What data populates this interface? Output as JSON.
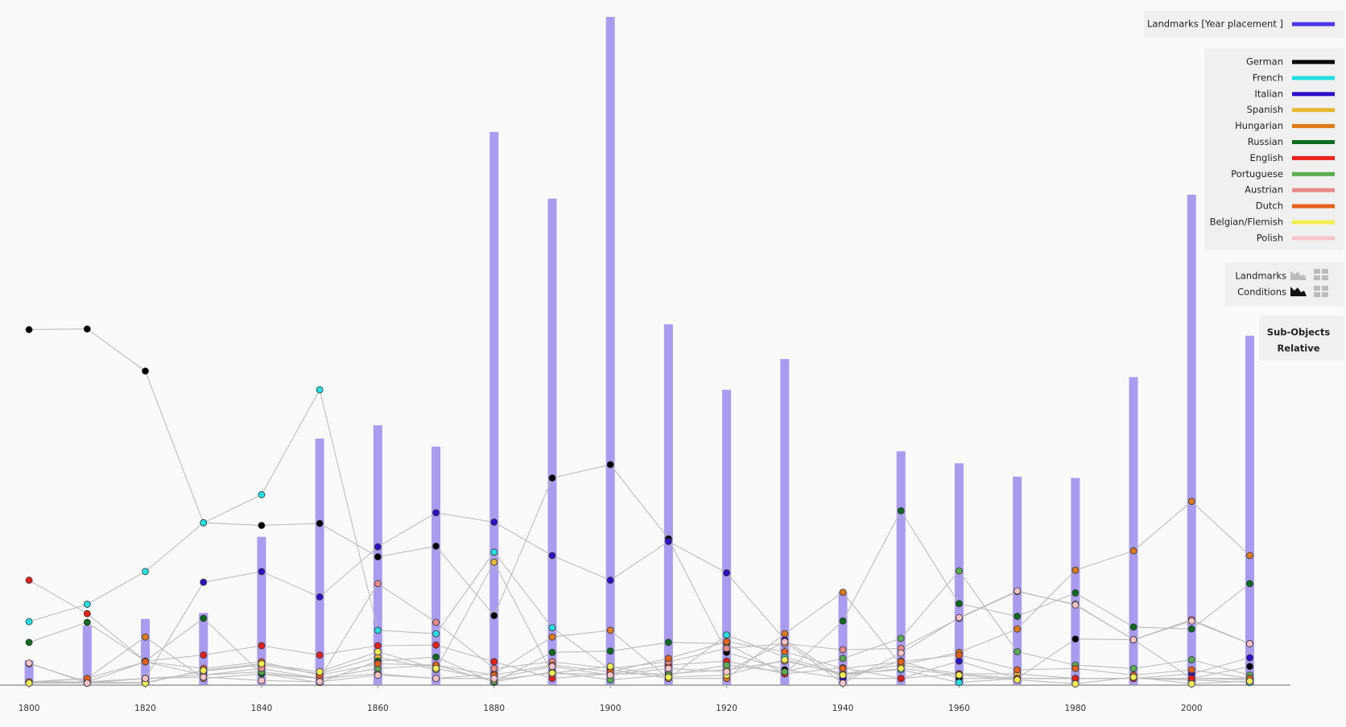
{
  "chart_data": {
    "type": "bar",
    "x": [
      1800,
      1810,
      1820,
      1830,
      1840,
      1850,
      1860,
      1870,
      1880,
      1890,
      1900,
      1910,
      1920,
      1930,
      1940,
      1950,
      1960,
      1970,
      1980,
      1990,
      2000,
      2010
    ],
    "xlim": [
      1795,
      2017
    ],
    "xticks": [
      1800,
      1820,
      1840,
      1860,
      1880,
      1900,
      1920,
      1940,
      1960,
      1980,
      2000
    ],
    "ylim": [
      0,
      100
    ],
    "series": [
      {
        "name": "Landmarks [Year placement ]",
        "type": "bar",
        "color": "#a99cf0",
        "legend_color": "#4a35e8",
        "values": [
          3.7,
          8.9,
          9.9,
          10.8,
          22.2,
          36.9,
          38.9,
          35.7,
          82.8,
          72.8,
          100,
          54,
          44.2,
          48.8,
          13.9,
          35,
          33.2,
          31.2,
          31,
          46.1,
          73.4,
          52.3
        ]
      },
      {
        "name": "German",
        "type": "line",
        "color": "#000000",
        "values": [
          53.2,
          53.3,
          47,
          24.3,
          23.9,
          24.2,
          19.2,
          20.8,
          10.4,
          31,
          33,
          21.9,
          4.9,
          2.3,
          1,
          3.6,
          1,
          1,
          6.9,
          6.8,
          1,
          2.8
        ]
      },
      {
        "name": "French",
        "type": "line",
        "color": "#22e0e0",
        "values": [
          9.5,
          12.1,
          17,
          24.3,
          28.5,
          44.2,
          8.2,
          7.7,
          19.9,
          8.6,
          2.3,
          1,
          7.5,
          4.2,
          1.7,
          2.3,
          0.4,
          1,
          1,
          1,
          0.8,
          0.4
        ]
      },
      {
        "name": "Italian",
        "type": "line",
        "color": "#2d10c8",
        "values": [
          0.4,
          0.4,
          1,
          15.4,
          17,
          13.2,
          20.7,
          25.8,
          24.4,
          19.4,
          15.7,
          21.5,
          16.8,
          6.8,
          1,
          1,
          3.6,
          1,
          1,
          1,
          1.7,
          4.1
        ]
      },
      {
        "name": "Spanish",
        "type": "line",
        "color": "#e6b830",
        "values": [
          0.4,
          0.4,
          0.4,
          2.1,
          3,
          1.7,
          4.2,
          2.3,
          18.4,
          1.7,
          1.7,
          1.7,
          2.3,
          3.6,
          1.7,
          3,
          1.7,
          1.7,
          1,
          1,
          1,
          0.8
        ]
      },
      {
        "name": "Hungarian",
        "type": "line",
        "color": "#e07b1a",
        "values": [
          0.4,
          1,
          7.2,
          1,
          1.7,
          1,
          1.7,
          1,
          1.7,
          7.2,
          8.2,
          1,
          1,
          7.7,
          13.9,
          3,
          4.9,
          8.4,
          17.2,
          20.1,
          27.5,
          19.4
        ]
      },
      {
        "name": "Russian",
        "type": "line",
        "color": "#0b6b1e",
        "values": [
          6.4,
          9.4,
          3.6,
          10,
          1.7,
          0.4,
          3.6,
          4.2,
          0.4,
          4.9,
          5.1,
          6.4,
          6.2,
          1.7,
          9.6,
          26.1,
          12.2,
          10.3,
          13.8,
          8.7,
          8.4,
          15.2
        ]
      },
      {
        "name": "English",
        "type": "line",
        "color": "#e8201a",
        "values": [
          15.7,
          10.7,
          3.6,
          4.5,
          5.9,
          4.5,
          5.9,
          6,
          3.5,
          1,
          1.7,
          3,
          3.6,
          1.7,
          2.6,
          1,
          1.7,
          1,
          1,
          1,
          1,
          1
        ]
      },
      {
        "name": "Portuguese",
        "type": "line",
        "color": "#5aad50",
        "values": [
          0.5,
          0.5,
          1,
          1.5,
          2,
          1,
          2.5,
          3,
          0.5,
          2,
          0.8,
          1.5,
          3,
          2,
          4,
          7,
          17.1,
          5,
          3,
          2.5,
          3.8,
          1.5
        ]
      },
      {
        "name": "Austrian",
        "type": "line",
        "color": "#e88a8a",
        "values": [
          3.2,
          0.5,
          3.5,
          1.5,
          2.5,
          1,
          15.2,
          9.4,
          2.5,
          3.5,
          2.5,
          3.5,
          5.5,
          6.2,
          5.3,
          5.5,
          10,
          14,
          12.1,
          6.8,
          9.8,
          6.2
        ]
      },
      {
        "name": "Dutch",
        "type": "line",
        "color": "#e8601a",
        "values": [
          0.5,
          1,
          3.5,
          2.5,
          3.5,
          1.5,
          3.2,
          3,
          1.5,
          3,
          2,
          4,
          6.5,
          5,
          2.5,
          3.5,
          4.5,
          2.3,
          2.5,
          1.5,
          2.3,
          1
        ]
      },
      {
        "name": "Belgian/Flemish",
        "type": "line",
        "color": "#f2ee50",
        "values": [
          0.3,
          0.3,
          0.3,
          2.2,
          3.2,
          2,
          5,
          2.5,
          0.8,
          1.8,
          2.8,
          1.2,
          1.5,
          3.8,
          1.5,
          2.5,
          1.5,
          0.8,
          0.2,
          1.2,
          0.2,
          0.6
        ]
      },
      {
        "name": "Polish",
        "type": "line",
        "color": "#f8c4c8",
        "values": [
          3.3,
          0.3,
          1,
          1.2,
          0.7,
          0.5,
          1.5,
          1,
          1,
          2.8,
          1.5,
          2.5,
          2,
          6.5,
          0.3,
          4.8,
          10.1,
          14.1,
          12,
          6.8,
          9.6,
          6.2
        ]
      }
    ]
  },
  "controls": {
    "view_labels": [
      "Landmarks",
      "Conditions"
    ],
    "mode_button": [
      "Sub-Objects",
      "Relative"
    ]
  }
}
